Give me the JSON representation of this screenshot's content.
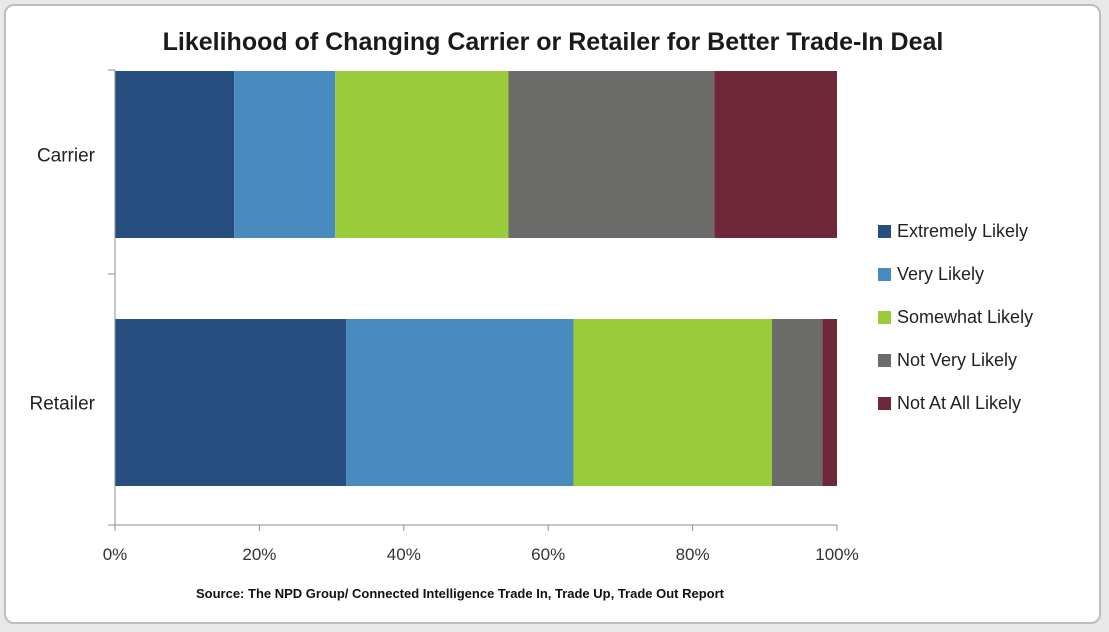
{
  "chart_data": {
    "type": "bar",
    "orientation": "horizontal",
    "stacked": "percent",
    "title": "Likelihood of Changing Carrier or Retailer for Better Trade-In Deal",
    "categories": [
      "Carrier",
      "Retailer"
    ],
    "series": [
      {
        "name": "Extremely Likely",
        "color": "#264e7e",
        "values": [
          16.5,
          32
        ]
      },
      {
        "name": "Very Likely",
        "color": "#4a8bbf",
        "values": [
          14,
          31.5
        ]
      },
      {
        "name": "Somewhat Likely",
        "color": "#9acb3b",
        "values": [
          24,
          27.5
        ]
      },
      {
        "name": "Not Very Likely",
        "color": "#6b6b69",
        "values": [
          28.5,
          7
        ]
      },
      {
        "name": "Not At All Likely",
        "color": "#6e2839",
        "values": [
          17,
          2
        ]
      }
    ],
    "x_ticks": [
      "0%",
      "20%",
      "40%",
      "60%",
      "80%",
      "100%"
    ],
    "xlim": [
      0,
      100
    ],
    "grid": false,
    "legend_position": "right",
    "source": "Source: The NPD Group/ Connected Intelligence Trade In, Trade Up, Trade Out Report"
  }
}
